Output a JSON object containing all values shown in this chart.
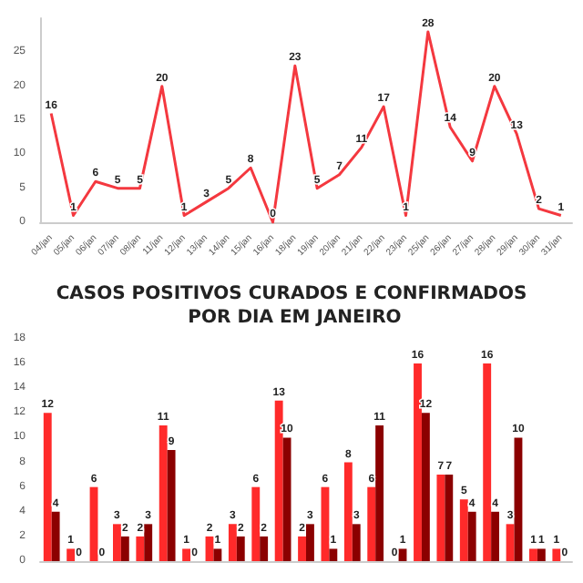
{
  "chart_data": [
    {
      "type": "line",
      "categories": [
        "04/jan",
        "05/jan",
        "06/jan",
        "07/jan",
        "08/jan",
        "11/jan",
        "12/jan",
        "13/jan",
        "14/jan",
        "15/jan",
        "16/jan",
        "18/jan",
        "19/jan",
        "20/jan",
        "21/jan",
        "22/jan",
        "23/jan",
        "25/jan",
        "26/jan",
        "27/jan",
        "28/jan",
        "29/jan",
        "30/jan",
        "31/jan"
      ],
      "series": [
        {
          "color": "#f4383f",
          "values": [
            16,
            1,
            6,
            5,
            5,
            20,
            1,
            3,
            5,
            8,
            0,
            23,
            5,
            7,
            11,
            17,
            1,
            28,
            14,
            9,
            20,
            13,
            2,
            1
          ]
        }
      ],
      "ylim": [
        0,
        30
      ],
      "yticks": [
        0,
        5,
        10,
        15,
        20,
        25
      ],
      "data_labels": true,
      "grid": false,
      "marker": "none"
    },
    {
      "type": "bar",
      "title": "CASOS POSITIVOS CURADOS E CONFIRMADOS POR DIA EM JANEIRO",
      "categories": [
        null,
        null,
        null,
        null,
        null,
        null,
        null,
        null,
        null,
        null,
        null,
        null,
        null,
        null,
        null,
        null,
        null,
        null,
        null,
        null,
        null,
        null,
        null
      ],
      "series": [
        {
          "color": "#ff2a2a",
          "values": [
            12,
            1,
            6,
            3,
            2,
            11,
            1,
            2,
            3,
            6,
            13,
            2,
            6,
            8,
            6,
            0,
            16,
            7,
            5,
            16,
            3,
            1,
            1
          ]
        },
        {
          "color": "#8b0000",
          "values": [
            4,
            0,
            0,
            2,
            3,
            9,
            0,
            1,
            2,
            2,
            10,
            3,
            1,
            3,
            11,
            1,
            12,
            7,
            4,
            4,
            10,
            1,
            0
          ]
        }
      ],
      "ylim": [
        0,
        18
      ],
      "yticks": [
        0,
        2,
        4,
        6,
        8,
        10,
        12,
        14,
        16,
        18
      ],
      "data_labels": true,
      "grid": false
    }
  ]
}
